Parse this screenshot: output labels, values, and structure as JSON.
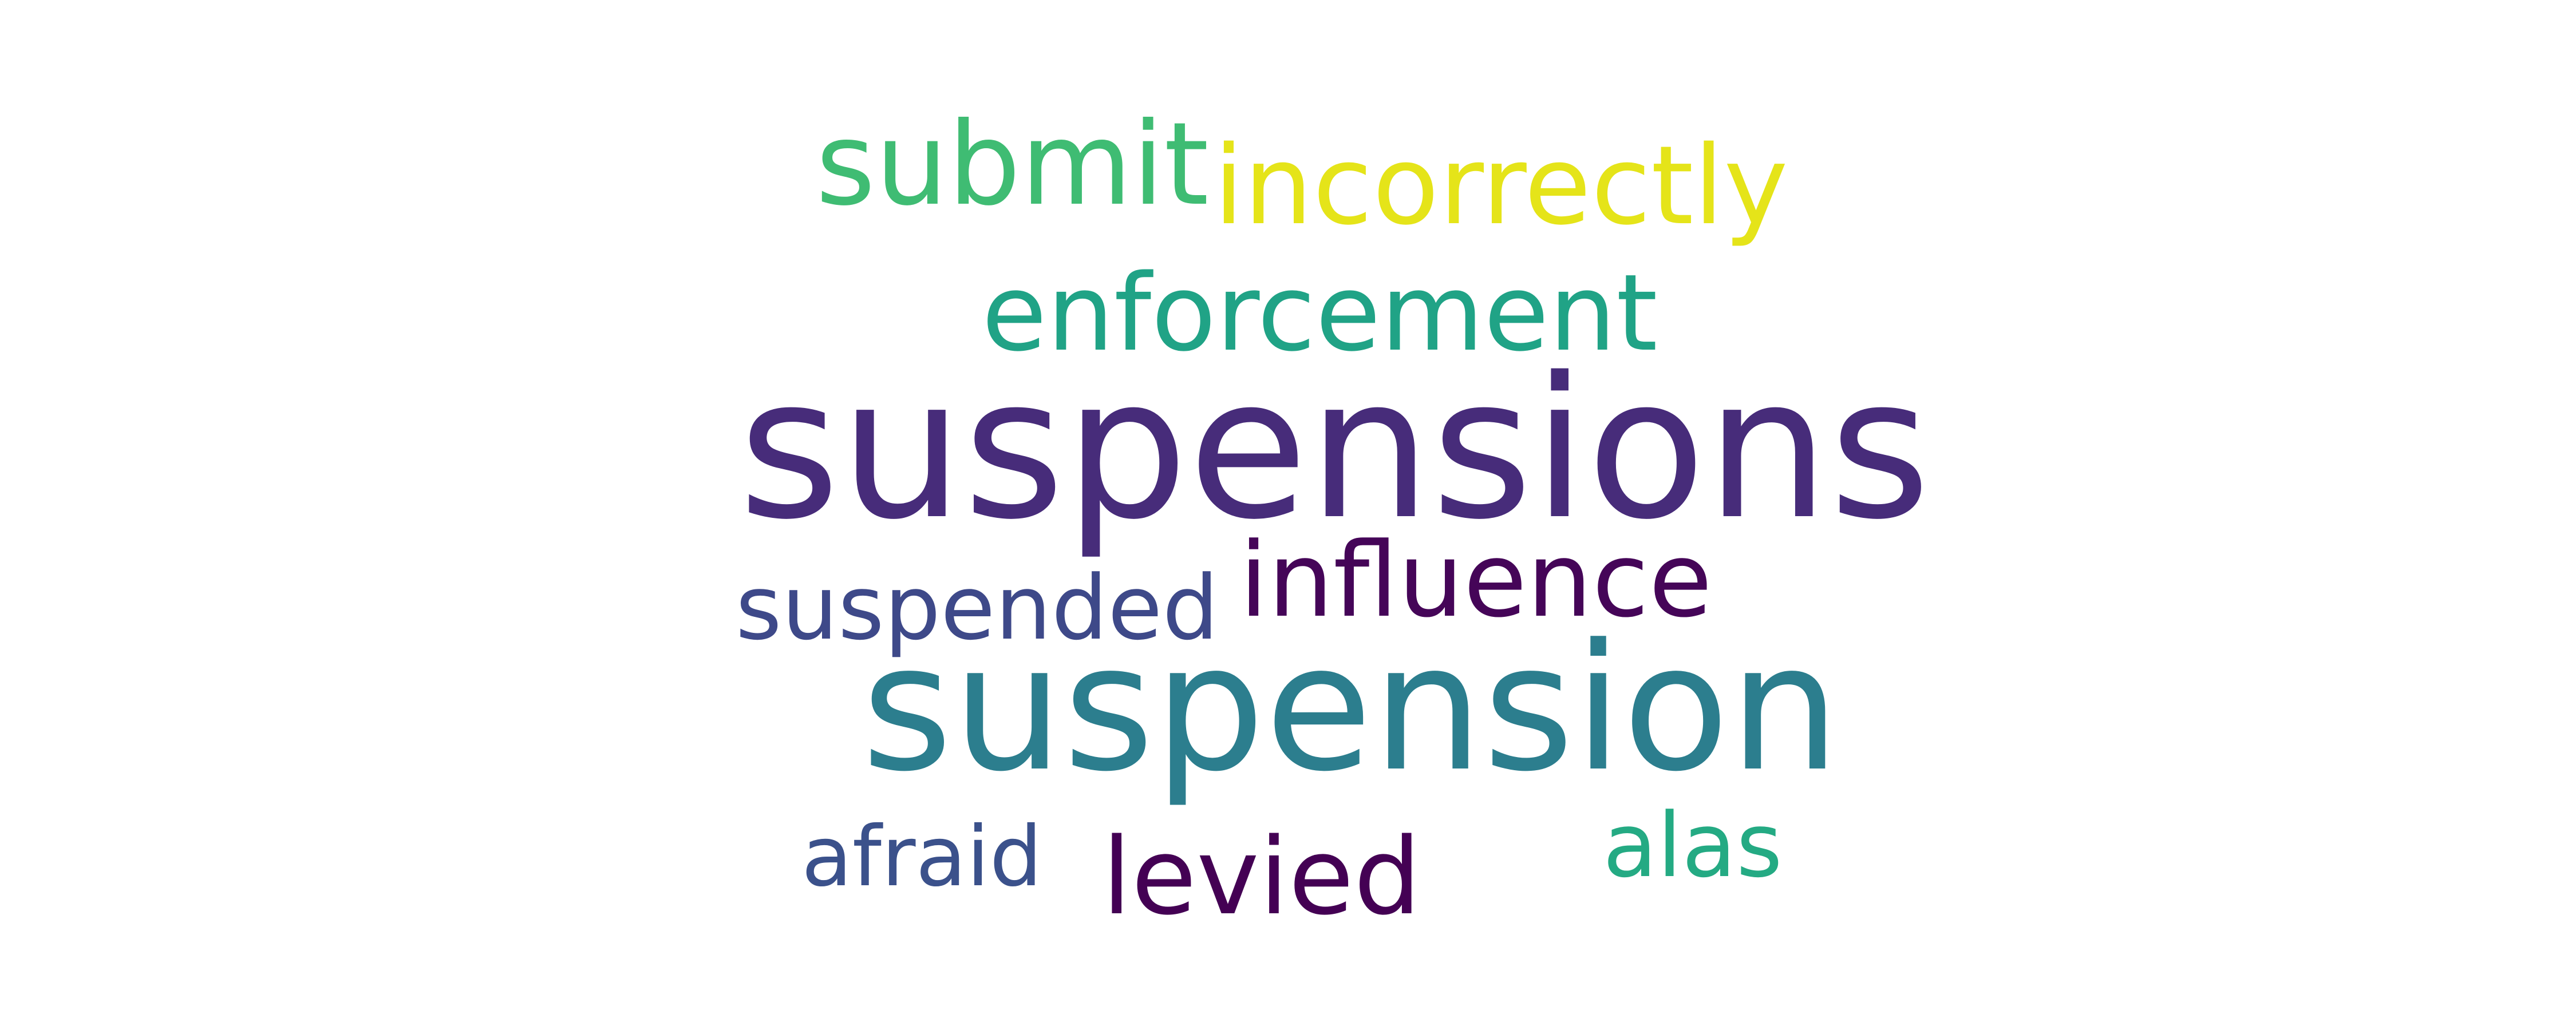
{
  "words": {
    "submit": {
      "text": "submit",
      "color": "#3fbc73"
    },
    "incorrectly": {
      "text": "incorrectly",
      "color": "#e5e419"
    },
    "enforcement": {
      "text": "enforcement",
      "color": "#20a386"
    },
    "suspensions": {
      "text": "suspensions",
      "color": "#472c7a"
    },
    "influence": {
      "text": "influence",
      "color": "#450558"
    },
    "suspended": {
      "text": "suspended",
      "color": "#3e4989"
    },
    "suspension": {
      "text": "suspension",
      "color": "#2c7e8e"
    },
    "afraid": {
      "text": "afraid",
      "color": "#3b518b"
    },
    "levied": {
      "text": "levied",
      "color": "#440154"
    },
    "alas": {
      "text": "alas",
      "color": "#24aa83"
    }
  },
  "background": "#ffffff"
}
